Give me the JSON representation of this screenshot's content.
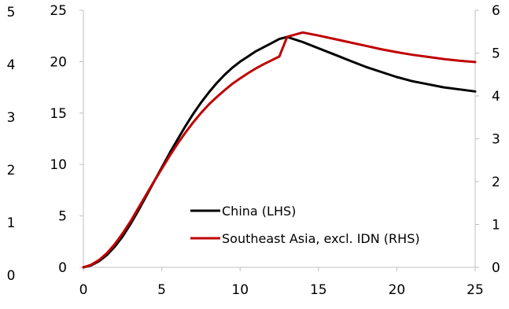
{
  "chart_data": {
    "type": "line",
    "title": "",
    "xlabel": "",
    "ylabel": "",
    "x": [
      0,
      0.5,
      1,
      1.5,
      2,
      2.5,
      3,
      3.5,
      4,
      4.5,
      5,
      5.5,
      6,
      6.5,
      7,
      7.5,
      8,
      8.5,
      9,
      9.5,
      10,
      10.5,
      11,
      11.5,
      12,
      12.5,
      13,
      14,
      15,
      16,
      17,
      18,
      19,
      20,
      21,
      22,
      23,
      24,
      25
    ],
    "series": [
      {
        "name": "China (LHS)",
        "axis": "left",
        "color": "#000000",
        "values": [
          0,
          0.2,
          0.6,
          1.2,
          2.0,
          3.0,
          4.2,
          5.5,
          6.9,
          8.3,
          9.7,
          11.1,
          12.4,
          13.7,
          14.9,
          16.0,
          17.0,
          17.9,
          18.7,
          19.4,
          20.0,
          20.5,
          21.0,
          21.4,
          21.8,
          22.2,
          22.4,
          21.9,
          21.3,
          20.7,
          20.1,
          19.5,
          19.0,
          18.5,
          18.1,
          17.8,
          17.5,
          17.3,
          17.1
        ]
      },
      {
        "name": "Southeast Asia, excl. IDN (RHS)",
        "axis": "right",
        "color": "#c00000",
        "values": [
          0,
          0.06,
          0.17,
          0.33,
          0.54,
          0.79,
          1.07,
          1.38,
          1.69,
          2.0,
          2.3,
          2.6,
          2.88,
          3.14,
          3.38,
          3.6,
          3.8,
          3.97,
          4.13,
          4.28,
          4.41,
          4.53,
          4.64,
          4.74,
          4.83,
          4.92,
          5.38,
          5.48,
          5.41,
          5.33,
          5.25,
          5.17,
          5.09,
          5.02,
          4.96,
          4.91,
          4.86,
          4.82,
          4.79
        ]
      }
    ],
    "xlim": [
      0,
      25
    ],
    "ylim_left": [
      0,
      20
    ],
    "ylim_right": [
      0,
      6
    ],
    "x_ticks": [
      "0",
      "5",
      "10",
      "15",
      "20",
      "25"
    ],
    "y_left_ticks": [
      "0",
      "5",
      "10",
      "15",
      "20",
      "25"
    ],
    "y_far_left_ticks": [
      "0",
      "1",
      "2",
      "3",
      "4",
      "5"
    ],
    "y_right_ticks": [
      "0",
      "1",
      "2",
      "3",
      "4",
      "5",
      "6"
    ],
    "legend_position": "bottom-right inside",
    "grid": false
  }
}
